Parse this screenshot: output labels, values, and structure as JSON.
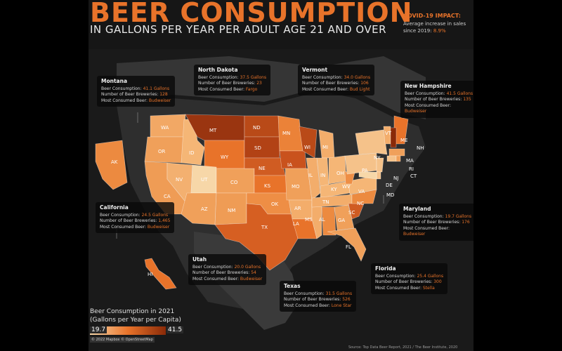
{
  "title": "BEER CONSUMPTION",
  "subtitle": "IN GALLONS PER YEAR PER ADULT AGE 21 AND OVER",
  "covid": {
    "heading": "COVID-19 IMPACT:",
    "text": "Average increase in sales since 2019:",
    "value": "8.9%"
  },
  "labels": {
    "consumption": "Beer Consumption:",
    "breweries": "Number of Beer Breweries:",
    "most": "Most Consumed Beer:"
  },
  "cards": [
    {
      "key": "montana",
      "state": "Montana",
      "consumption": "41.1 Gallons",
      "breweries": "128",
      "beer": "Budweiser"
    },
    {
      "key": "north-dakota",
      "state": "North Dakota",
      "consumption": "37.5 Gallons",
      "breweries": "23",
      "beer": "Fargo"
    },
    {
      "key": "vermont",
      "state": "Vermont",
      "consumption": "34.0 Gallons",
      "breweries": "106",
      "beer": "Bud Light"
    },
    {
      "key": "new-hampshire",
      "state": "New Hampshire",
      "consumption": "41.5 Gallons",
      "breweries": "135",
      "beer": "Budweiser"
    },
    {
      "key": "california",
      "state": "California",
      "consumption": "24.5 Gallons",
      "breweries": "1,465",
      "beer": "Budweiser"
    },
    {
      "key": "maryland",
      "state": "Maryland",
      "consumption": "19.7 Gallons",
      "breweries": "176",
      "beer": "Budweiser"
    },
    {
      "key": "utah",
      "state": "Utah",
      "consumption": "20.0 Gallons",
      "breweries": "54",
      "beer": "Budweiser"
    },
    {
      "key": "florida",
      "state": "Florida",
      "consumption": "25.4 Gallons",
      "breweries": "300",
      "beer": "Stella"
    },
    {
      "key": "texas",
      "state": "Texas",
      "consumption": "31.5 Gallons",
      "breweries": "526",
      "beer": "Lone Star"
    }
  ],
  "state_labels": [
    "WA",
    "OR",
    "CA",
    "ID",
    "NV",
    "MT",
    "WY",
    "UT",
    "AZ",
    "CO",
    "NM",
    "ND",
    "SD",
    "NE",
    "KS",
    "OK",
    "TX",
    "MN",
    "IA",
    "MO",
    "AR",
    "LA",
    "WI",
    "IL",
    "MS",
    "MI",
    "IN",
    "KY",
    "TN",
    "AL",
    "OH",
    "GA",
    "FL",
    "SC",
    "NC",
    "VA",
    "WV",
    "PA",
    "NY",
    "VT",
    "ME",
    "NH",
    "MA",
    "RI",
    "CT",
    "NJ",
    "DE",
    "MD",
    "AK",
    "HI"
  ],
  "legend": {
    "title_line1": "Beer Consumption in 2021",
    "title_line2": "(Gallons per Year per Capita)",
    "min": "19.7",
    "max": "41.5"
  },
  "attribution": "© 2022 Mapbox © OpenStreetMap",
  "source": "Source: Top Data Beer Report, 2021 / The Beer Institute, 2020",
  "colors": {
    "accent": "#e8732a",
    "low": "#f7d7a8",
    "high": "#8a2a08"
  }
}
